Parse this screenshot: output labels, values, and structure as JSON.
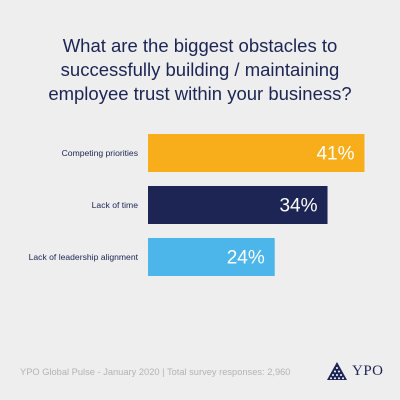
{
  "title": "What are the biggest obstacles to successfully building / maintaining employee trust within your business?",
  "chart_data": {
    "type": "bar",
    "orientation": "horizontal",
    "categories": [
      "Competing priorities",
      "Lack of time",
      "Lack of leadership alignment"
    ],
    "values": [
      41,
      34,
      24
    ],
    "value_labels": [
      "41%",
      "34%",
      "24%"
    ],
    "colors": [
      "#f8ae1b",
      "#1c2553",
      "#4cb6ea"
    ],
    "xlim": [
      0,
      45
    ],
    "grid": false
  },
  "footer": "YPO Global Pulse - January 2020 | Total survey responses: 2,960",
  "logo": {
    "icon": "pyramid-icon",
    "text": "YPO",
    "color": "#1c2553"
  }
}
